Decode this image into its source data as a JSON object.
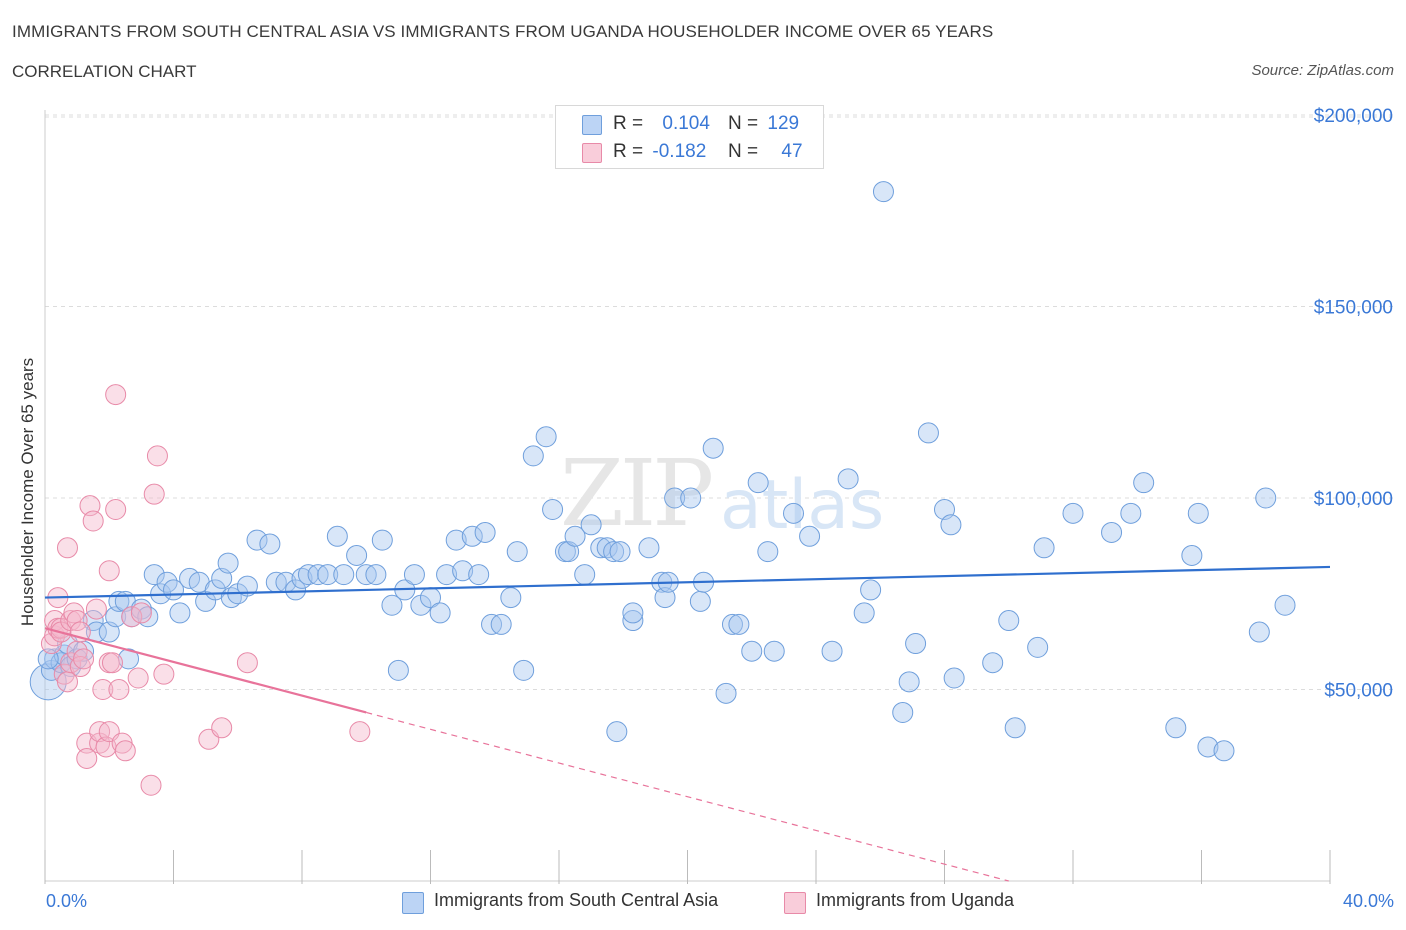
{
  "header": {
    "title": "IMMIGRANTS FROM SOUTH CENTRAL ASIA VS IMMIGRANTS FROM UGANDA HOUSEHOLDER INCOME OVER 65 YEARS",
    "subtitle": "CORRELATION CHART",
    "source": "Source: ZipAtlas.com"
  },
  "legend": {
    "rows": [
      {
        "r_label": "R =",
        "r_value": "0.104",
        "n_label": "N =",
        "n_value": "129",
        "color": "#a8c8f0"
      },
      {
        "r_label": "R =",
        "r_value": "-0.182",
        "n_label": "N =",
        "n_value": "47",
        "color": "#f5b8cb"
      }
    ]
  },
  "bottom_legend": {
    "series_1": "Immigrants from South Central Asia",
    "series_2": "Immigrants from Uganda"
  },
  "axes": {
    "x_min_label": "0.0%",
    "x_max_label": "40.0%",
    "y_label": "Householder Income Over 65 years",
    "y_ticks": [
      "$50,000",
      "$100,000",
      "$150,000",
      "$200,000"
    ]
  },
  "colors": {
    "blue_fill": "#a8c8f0",
    "blue_stroke": "#6f9fdc",
    "blue_line": "#2f6fce",
    "pink_fill": "#f5b8cb",
    "pink_stroke": "#e88aa8",
    "pink_line": "#e8739a",
    "axis_text": "#3a78d6",
    "grid": "#dcdcdc"
  },
  "chart_data": {
    "type": "scatter",
    "xlabel": "",
    "ylabel": "Householder Income Over 65 years",
    "xlim": [
      0,
      40
    ],
    "ylim": [
      0,
      210000
    ],
    "y_ticks": [
      50000,
      100000,
      150000,
      200000
    ],
    "grid": "horizontal dashed",
    "watermark": "ZIPatlas",
    "series": [
      {
        "name": "Immigrants from South Central Asia",
        "r": 0.104,
        "n": 129,
        "trend": {
          "x0": 0,
          "y0": 74000,
          "x1": 40,
          "y1": 82000,
          "dashed_from": null
        },
        "points": [
          [
            0.1,
            52000
          ],
          [
            0.2,
            55000
          ],
          [
            0.3,
            58000
          ],
          [
            0.5,
            57000
          ],
          [
            0.6,
            59000
          ],
          [
            0.7,
            62000
          ],
          [
            0.8,
            56000
          ],
          [
            1.0,
            58000
          ],
          [
            1.2,
            60000
          ],
          [
            1.5,
            68000
          ],
          [
            1.6,
            65000
          ],
          [
            2.0,
            65000
          ],
          [
            2.2,
            69000
          ],
          [
            2.3,
            73000
          ],
          [
            2.5,
            73000
          ],
          [
            2.6,
            58000
          ],
          [
            2.7,
            69000
          ],
          [
            3.0,
            71000
          ],
          [
            3.2,
            69000
          ],
          [
            3.4,
            80000
          ],
          [
            3.6,
            75000
          ],
          [
            3.8,
            78000
          ],
          [
            4.0,
            76000
          ],
          [
            4.2,
            70000
          ],
          [
            4.5,
            79000
          ],
          [
            4.8,
            78000
          ],
          [
            5.0,
            73000
          ],
          [
            5.3,
            76000
          ],
          [
            5.5,
            79000
          ],
          [
            5.7,
            83000
          ],
          [
            5.8,
            74000
          ],
          [
            6.0,
            75000
          ],
          [
            6.3,
            77000
          ],
          [
            6.6,
            89000
          ],
          [
            7.0,
            88000
          ],
          [
            7.2,
            78000
          ],
          [
            7.5,
            78000
          ],
          [
            7.8,
            76000
          ],
          [
            8.0,
            79000
          ],
          [
            8.2,
            80000
          ],
          [
            8.5,
            80000
          ],
          [
            8.8,
            80000
          ],
          [
            9.1,
            90000
          ],
          [
            9.3,
            80000
          ],
          [
            9.7,
            85000
          ],
          [
            10.0,
            80000
          ],
          [
            10.3,
            80000
          ],
          [
            10.5,
            89000
          ],
          [
            10.8,
            72000
          ],
          [
            11.0,
            55000
          ],
          [
            11.2,
            76000
          ],
          [
            11.5,
            80000
          ],
          [
            11.7,
            72000
          ],
          [
            12.0,
            74000
          ],
          [
            12.3,
            70000
          ],
          [
            12.5,
            80000
          ],
          [
            12.8,
            89000
          ],
          [
            13.0,
            81000
          ],
          [
            13.3,
            90000
          ],
          [
            13.5,
            80000
          ],
          [
            13.7,
            91000
          ],
          [
            13.9,
            67000
          ],
          [
            14.2,
            67000
          ],
          [
            14.5,
            74000
          ],
          [
            14.7,
            86000
          ],
          [
            14.9,
            55000
          ],
          [
            15.2,
            111000
          ],
          [
            15.6,
            116000
          ],
          [
            15.8,
            97000
          ],
          [
            16.2,
            86000
          ],
          [
            16.3,
            86000
          ],
          [
            16.5,
            90000
          ],
          [
            16.8,
            80000
          ],
          [
            17.0,
            93000
          ],
          [
            17.3,
            87000
          ],
          [
            17.5,
            87000
          ],
          [
            17.7,
            86000
          ],
          [
            17.8,
            39000
          ],
          [
            17.9,
            86000
          ],
          [
            18.3,
            68000
          ],
          [
            18.3,
            70000
          ],
          [
            18.8,
            87000
          ],
          [
            19.2,
            78000
          ],
          [
            19.3,
            74000
          ],
          [
            19.4,
            78000
          ],
          [
            19.6,
            100000
          ],
          [
            20.1,
            100000
          ],
          [
            20.4,
            73000
          ],
          [
            20.5,
            78000
          ],
          [
            20.8,
            113000
          ],
          [
            21.2,
            49000
          ],
          [
            21.4,
            67000
          ],
          [
            21.6,
            67000
          ],
          [
            22.0,
            60000
          ],
          [
            22.2,
            104000
          ],
          [
            22.5,
            86000
          ],
          [
            22.7,
            60000
          ],
          [
            23.3,
            96000
          ],
          [
            23.8,
            90000
          ],
          [
            24.5,
            60000
          ],
          [
            25.0,
            105000
          ],
          [
            25.5,
            70000
          ],
          [
            25.7,
            76000
          ],
          [
            26.1,
            180000
          ],
          [
            26.7,
            44000
          ],
          [
            26.9,
            52000
          ],
          [
            27.1,
            62000
          ],
          [
            27.5,
            117000
          ],
          [
            28.0,
            97000
          ],
          [
            28.2,
            93000
          ],
          [
            28.3,
            53000
          ],
          [
            29.5,
            57000
          ],
          [
            30.0,
            68000
          ],
          [
            30.2,
            40000
          ],
          [
            30.9,
            61000
          ],
          [
            31.1,
            87000
          ],
          [
            32.0,
            96000
          ],
          [
            33.2,
            91000
          ],
          [
            33.8,
            96000
          ],
          [
            34.2,
            104000
          ],
          [
            35.2,
            40000
          ],
          [
            35.7,
            85000
          ],
          [
            35.9,
            96000
          ],
          [
            36.2,
            35000
          ],
          [
            36.7,
            34000
          ],
          [
            37.8,
            65000
          ],
          [
            38.0,
            100000
          ],
          [
            38.6,
            72000
          ],
          [
            0.1,
            58000
          ]
        ]
      },
      {
        "name": "Immigrants from Uganda",
        "r": -0.182,
        "n": 47,
        "trend": {
          "x0": 0,
          "y0": 66000,
          "x1": 10,
          "y1": 44000,
          "dashed_to": [
            30,
            0
          ]
        },
        "points": [
          [
            0.2,
            62000
          ],
          [
            0.3,
            64000
          ],
          [
            0.3,
            68000
          ],
          [
            0.4,
            74000
          ],
          [
            0.4,
            66000
          ],
          [
            0.5,
            66000
          ],
          [
            0.5,
            65000
          ],
          [
            0.6,
            54000
          ],
          [
            0.7,
            52000
          ],
          [
            0.7,
            87000
          ],
          [
            0.8,
            68000
          ],
          [
            0.8,
            57000
          ],
          [
            0.9,
            70000
          ],
          [
            1.0,
            60000
          ],
          [
            1.0,
            68000
          ],
          [
            1.1,
            65000
          ],
          [
            1.1,
            56000
          ],
          [
            1.2,
            58000
          ],
          [
            1.3,
            36000
          ],
          [
            1.3,
            32000
          ],
          [
            1.4,
            98000
          ],
          [
            1.5,
            94000
          ],
          [
            1.6,
            71000
          ],
          [
            1.7,
            36000
          ],
          [
            1.7,
            39000
          ],
          [
            1.8,
            50000
          ],
          [
            1.9,
            35000
          ],
          [
            2.0,
            57000
          ],
          [
            2.0,
            81000
          ],
          [
            2.0,
            39000
          ],
          [
            2.1,
            57000
          ],
          [
            2.2,
            97000
          ],
          [
            2.2,
            127000
          ],
          [
            2.3,
            50000
          ],
          [
            2.4,
            36000
          ],
          [
            2.5,
            34000
          ],
          [
            2.7,
            69000
          ],
          [
            2.9,
            53000
          ],
          [
            3.0,
            70000
          ],
          [
            3.3,
            25000
          ],
          [
            3.4,
            101000
          ],
          [
            3.5,
            111000
          ],
          [
            3.7,
            54000
          ],
          [
            5.1,
            37000
          ],
          [
            5.5,
            40000
          ],
          [
            6.3,
            57000
          ],
          [
            9.8,
            39000
          ]
        ]
      }
    ]
  }
}
